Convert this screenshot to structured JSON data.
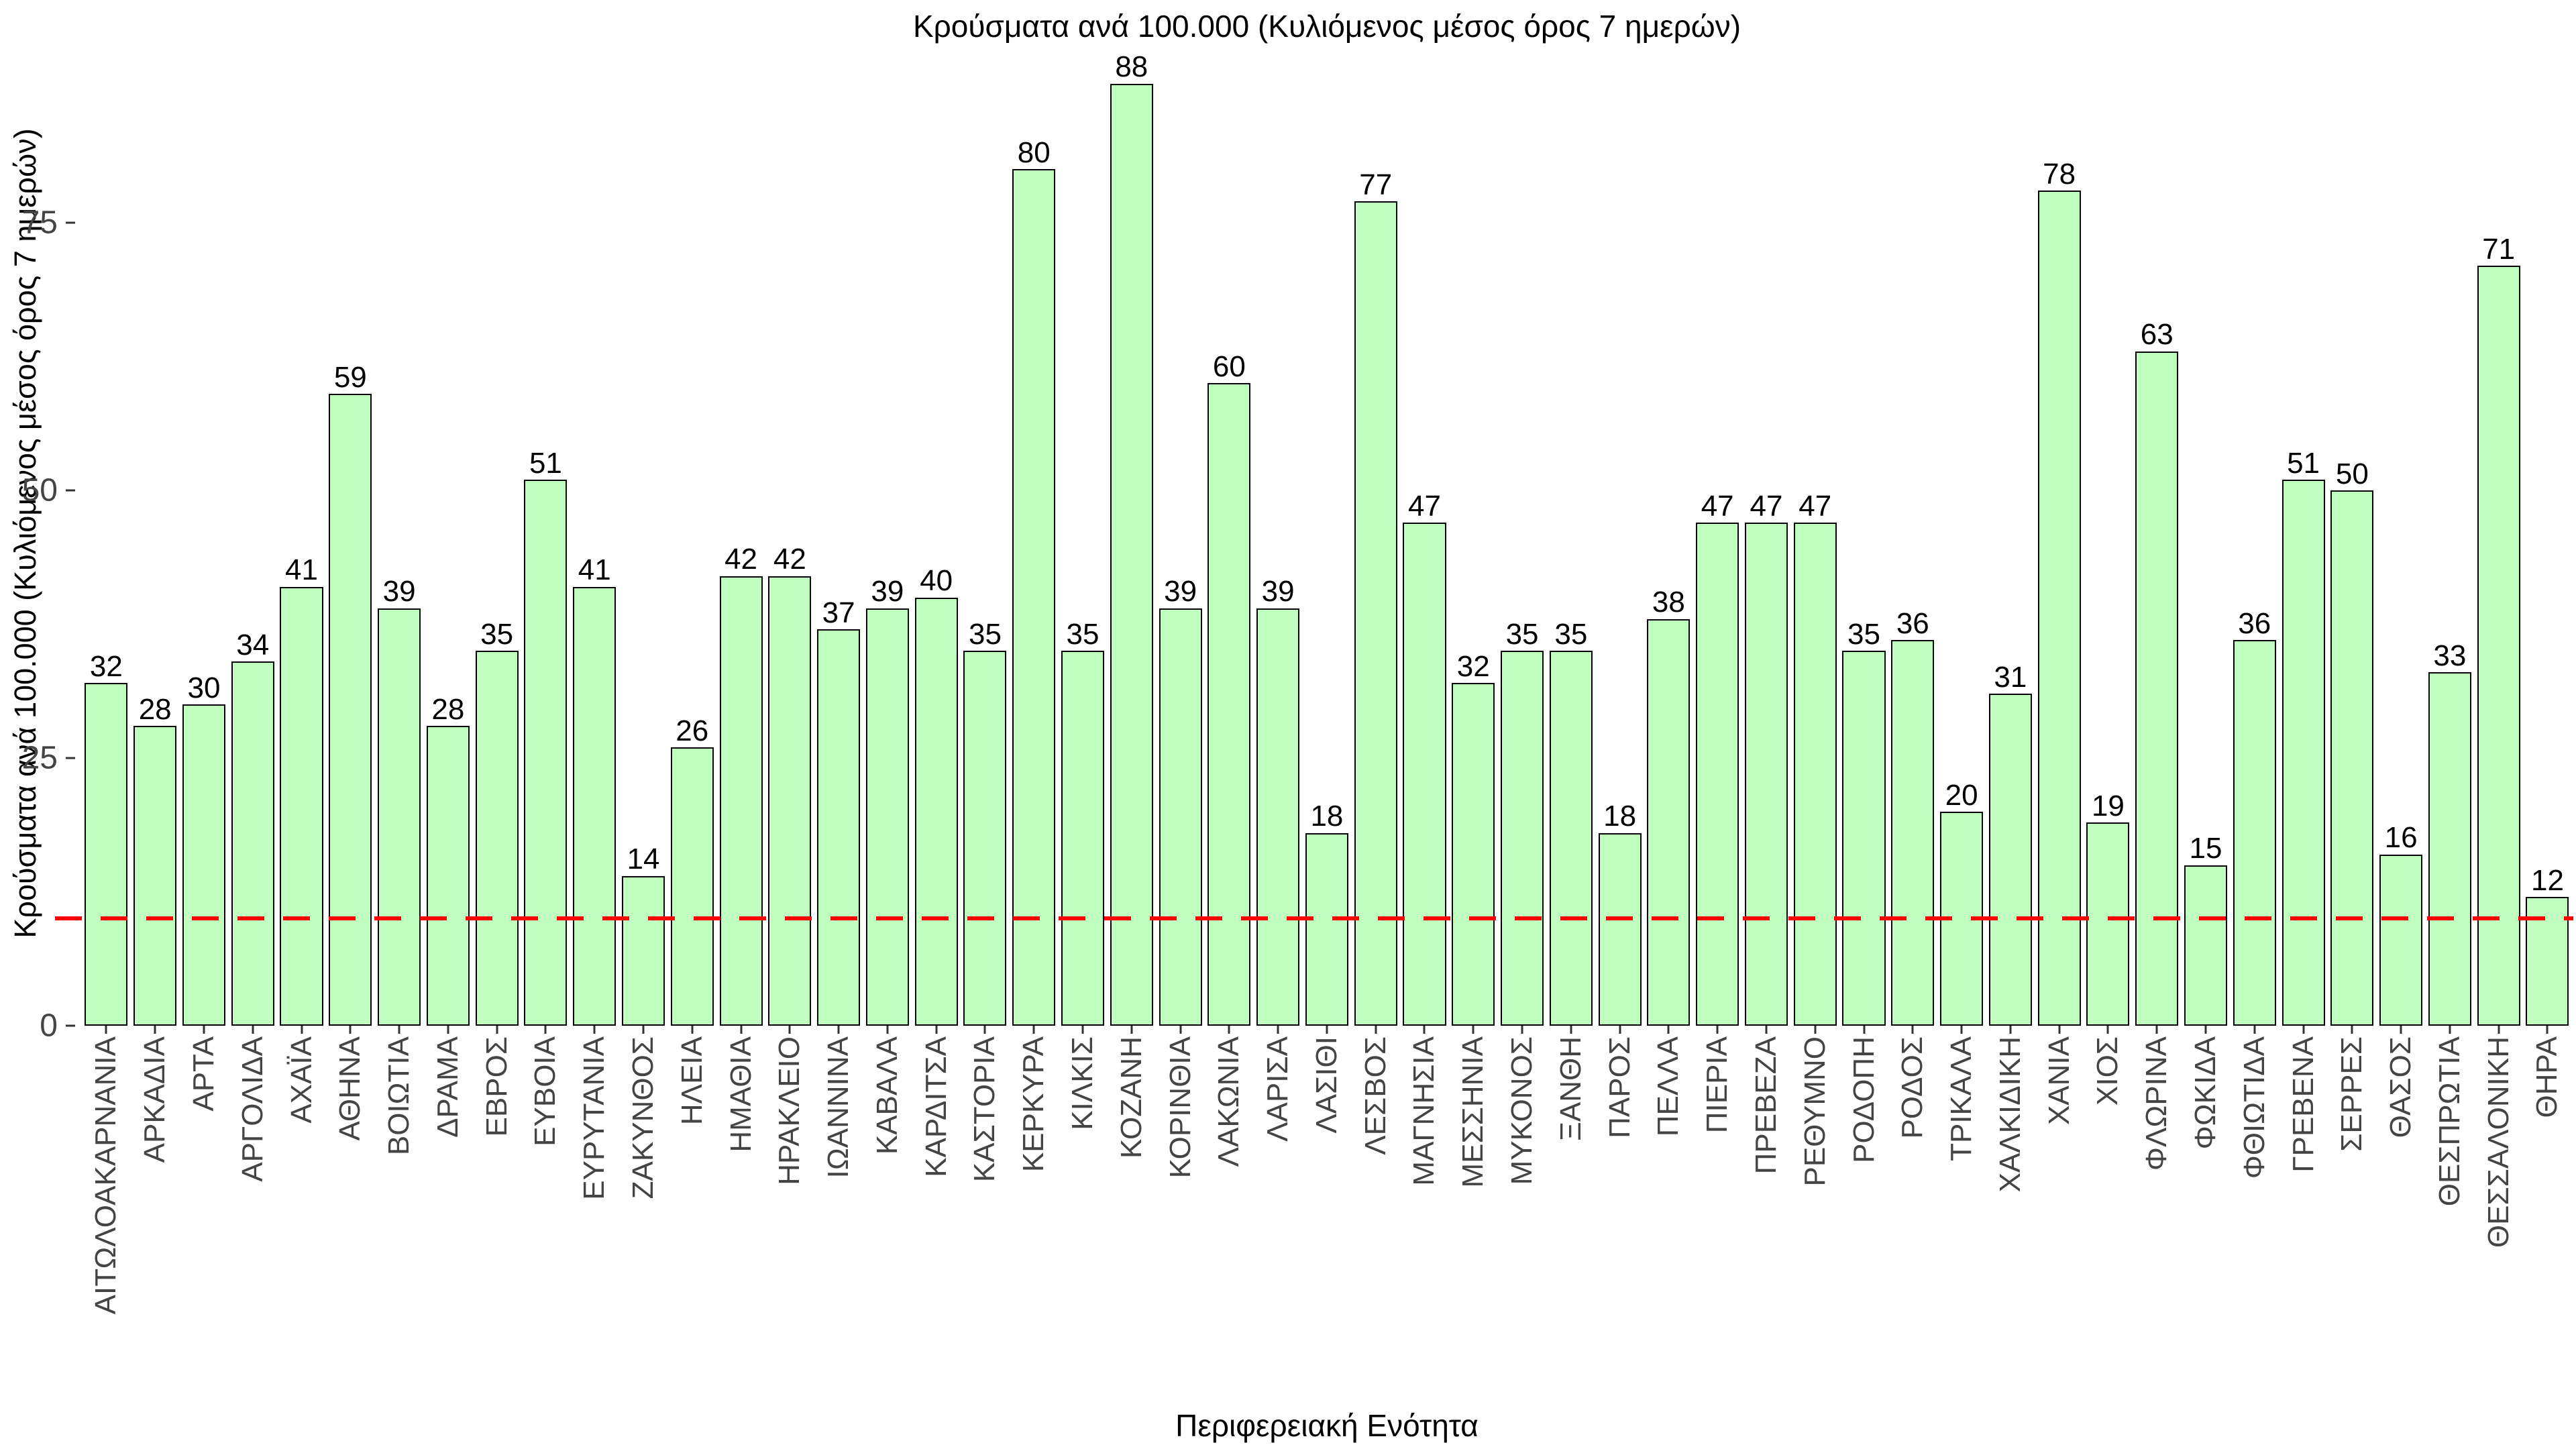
{
  "chart_data": {
    "type": "bar",
    "title": "Κρούσματα ανά 100.000 (Κυλιόμενος μέσος όρος 7 ημερών)",
    "xlabel": "Περιφερειακή Ενότητα",
    "ylabel": "Κρούσματα ανά 100.000 (Κυλιόμενος μέσος όρος 7 ημερών)",
    "categories": [
      "ΑΙΤΩΛΟΑΚΑΡΝΑΝΙΑ",
      "ΑΡΚΑΔΙΑ",
      "ΑΡΤΑ",
      "ΑΡΓΟΛΙΔΑ",
      "ΑΧΑΪΑ",
      "ΑΘΗΝΑ",
      "ΒΟΙΩΤΙΑ",
      "ΔΡΑΜΑ",
      "ΕΒΡΟΣ",
      "ΕΥΒΟΙΑ",
      "ΕΥΡΥΤΑΝΙΑ",
      "ΖΑΚΥΝΘΟΣ",
      "ΗΛΕΙΑ",
      "ΗΜΑΘΙΑ",
      "ΗΡΑΚΛΕΙΟ",
      "ΙΩΑΝΝΙΝΑ",
      "ΚΑΒΑΛΑ",
      "ΚΑΡΔΙΤΣΑ",
      "ΚΑΣΤΟΡΙΑ",
      "ΚΕΡΚΥΡΑ",
      "ΚΙΛΚΙΣ",
      "ΚΟΖΑΝΗ",
      "ΚΟΡΙΝΘΙΑ",
      "ΛΑΚΩΝΙΑ",
      "ΛΑΡΙΣΑ",
      "ΛΑΣΙΘΙ",
      "ΛΕΣΒΟΣ",
      "ΜΑΓΝΗΣΙΑ",
      "ΜΕΣΣΗΝΙΑ",
      "ΜΥΚΟΝΟΣ",
      "ΞΑΝΘΗ",
      "ΠΑΡΟΣ",
      "ΠΕΛΛΑ",
      "ΠΙΕΡΙΑ",
      "ΠΡΕΒΕΖΑ",
      "ΡΕΘΥΜΝΟ",
      "ΡΟΔΟΠΗ",
      "ΡΟΔΟΣ",
      "ΤΡΙΚΑΛΑ",
      "ΧΑΛΚΙΔΙΚΗ",
      "ΧΑΝΙΑ",
      "ΧΙΟΣ",
      "ΦΛΩΡΙΝΑ",
      "ΦΩΚΙΔΑ",
      "ΦΘΙΩΤΙΔΑ",
      "ΓΡΕΒΕΝΑ",
      "ΣΕΡΡΕΣ",
      "ΘΑΣΟΣ",
      "ΘΕΣΠΡΩΤΙΑ",
      "ΘΕΣΣΑΛΟΝΙΚΗ",
      "ΘΗΡΑ"
    ],
    "values": [
      32,
      28,
      30,
      34,
      41,
      59,
      39,
      28,
      35,
      51,
      41,
      14,
      26,
      42,
      42,
      37,
      39,
      40,
      35,
      80,
      35,
      88,
      39,
      60,
      39,
      18,
      77,
      47,
      32,
      35,
      35,
      18,
      38,
      47,
      47,
      47,
      35,
      36,
      20,
      31,
      78,
      19,
      63,
      15,
      36,
      51,
      50,
      16,
      33,
      71,
      12
    ],
    "yticks": [
      0,
      25,
      50,
      75
    ],
    "ylim": [
      0,
      92
    ],
    "grid": false,
    "legend": "none",
    "value_labels": true,
    "reference_line": {
      "value": 10,
      "color": "#FF0000",
      "style": "dashed"
    },
    "bar_fill": "#C1FFC1",
    "bar_border": "#000000"
  }
}
